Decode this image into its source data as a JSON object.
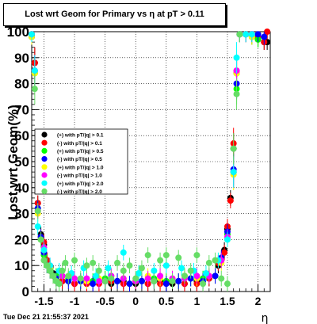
{
  "title": "Lost wrt Geom for Primary vs  η at pT > 0.11",
  "timestamp": "Tue Dec 21 21:55:37 2021",
  "chart_data": {
    "type": "scatter",
    "title": "Lost wrt Geom for Primary vs  η at pT > 0.11",
    "xlabel": "η",
    "ylabel": "Lost wrt Geom(%)",
    "xlim": [
      -1.7,
      2.2
    ],
    "ylim": [
      0,
      100
    ],
    "x_ticks": [
      "-1.5",
      "-1",
      "-0.5",
      "0",
      "0.5",
      "1",
      "1.5",
      "2"
    ],
    "y_ticks": [
      "0",
      "10",
      "20",
      "30",
      "40",
      "50",
      "60",
      "70",
      "80",
      "90",
      "100"
    ],
    "grid": true,
    "legend_position": "middle-left",
    "series": [
      {
        "name": "(+) with pT/|q| > 0.1",
        "color": "#000000",
        "x": [
          -1.7,
          -1.65,
          -1.6,
          -1.55,
          -1.5,
          -1.45,
          -1.4,
          -1.35,
          -1.3,
          -1.2,
          -1.0,
          -0.8,
          -0.6,
          -0.4,
          -0.2,
          0.0,
          0.2,
          0.4,
          0.6,
          0.8,
          1.0,
          1.2,
          1.35,
          1.45,
          1.5,
          1.55,
          1.6,
          1.65,
          1.7,
          1.8,
          1.9,
          2.0,
          2.1,
          2.15
        ],
        "y": [
          99,
          88,
          34,
          22,
          18,
          12,
          9,
          7,
          5,
          4,
          3,
          3,
          4,
          3,
          4,
          3,
          3,
          4,
          3,
          3,
          4,
          5,
          10,
          16,
          24,
          36,
          55,
          84,
          99,
          99,
          98,
          97,
          96,
          96
        ]
      },
      {
        "name": "(-) with pT/|q| > 0.1",
        "color": "#ff0000",
        "x": [
          -1.7,
          -1.65,
          -1.6,
          -1.55,
          -1.5,
          -1.45,
          -1.4,
          -1.35,
          -1.3,
          -1.2,
          -1.0,
          -0.8,
          -0.6,
          -0.4,
          -0.2,
          0.0,
          0.2,
          0.4,
          0.6,
          0.8,
          1.0,
          1.2,
          1.35,
          1.45,
          1.5,
          1.55,
          1.6,
          1.65,
          1.7,
          1.8,
          1.9,
          2.0,
          2.1,
          2.15
        ],
        "y": [
          99,
          88,
          34,
          21,
          19,
          12,
          9,
          6,
          5,
          4,
          3,
          3,
          3,
          4,
          3,
          4,
          3,
          3,
          4,
          3,
          3,
          5,
          11,
          15,
          25,
          35,
          57,
          85,
          99,
          99,
          99,
          98,
          96,
          100
        ]
      },
      {
        "name": "(+) with pT/|q| > 0.5",
        "color": "#00ff00",
        "x": [
          -1.7,
          -1.65,
          -1.6,
          -1.55,
          -1.5,
          -1.45,
          -1.4,
          -1.3,
          -1.1,
          -0.9,
          -0.7,
          -0.5,
          -0.3,
          -0.1,
          0.1,
          0.3,
          0.5,
          0.7,
          0.9,
          1.1,
          1.3,
          1.4,
          1.5,
          1.6,
          1.65,
          1.7,
          1.8,
          1.9,
          2.0
        ],
        "y": [
          98,
          84,
          32,
          20,
          14,
          10,
          8,
          6,
          5,
          4,
          4,
          5,
          4,
          3,
          4,
          5,
          4,
          4,
          5,
          5,
          6,
          12,
          22,
          46,
          78,
          99,
          99,
          98,
          97
        ]
      },
      {
        "name": "(-) with pT/|q| > 0.5",
        "color": "#0000ff",
        "x": [
          -1.7,
          -1.65,
          -1.6,
          -1.55,
          -1.5,
          -1.45,
          -1.4,
          -1.3,
          -1.1,
          -0.9,
          -0.7,
          -0.5,
          -0.3,
          -0.1,
          0.1,
          0.3,
          0.5,
          0.7,
          0.9,
          1.1,
          1.3,
          1.4,
          1.5,
          1.6,
          1.65,
          1.7,
          1.8,
          1.9,
          2.0,
          2.1
        ],
        "y": [
          98,
          85,
          32,
          21,
          15,
          10,
          8,
          5,
          4,
          4,
          3,
          4,
          4,
          3,
          4,
          4,
          3,
          4,
          5,
          4,
          6,
          13,
          23,
          47,
          80,
          99,
          99,
          99,
          99,
          98
        ]
      },
      {
        "name": "(+) with pT/|q| > 1.0",
        "color": "#ffff00",
        "x": [
          -1.7,
          -1.65,
          -1.6,
          -1.5,
          -1.4,
          -1.2,
          -1.0,
          -0.8,
          -0.6,
          -0.4,
          -0.2,
          0.0,
          0.2,
          0.4,
          0.6,
          0.8,
          1.0,
          1.2,
          1.4,
          1.5,
          1.6,
          1.65,
          1.7,
          1.8,
          1.9
        ],
        "y": [
          98,
          84,
          30,
          16,
          9,
          6,
          5,
          4,
          5,
          6,
          5,
          4,
          6,
          5,
          5,
          6,
          5,
          6,
          11,
          20,
          45,
          84,
          99,
          99,
          98
        ]
      },
      {
        "name": "(-) with pT/|q| > 1.0",
        "color": "#ff00ff",
        "x": [
          -1.7,
          -1.65,
          -1.6,
          -1.5,
          -1.4,
          -1.2,
          -1.0,
          -0.8,
          -0.6,
          -0.4,
          -0.2,
          0.0,
          0.2,
          0.4,
          0.6,
          0.8,
          1.0,
          1.2,
          1.4,
          1.5,
          1.6,
          1.65,
          1.7,
          1.8,
          1.9
        ],
        "y": [
          99,
          85,
          31,
          17,
          10,
          6,
          5,
          5,
          4,
          6,
          5,
          4,
          5,
          6,
          5,
          5,
          6,
          6,
          12,
          21,
          46,
          85,
          99,
          99,
          99
        ]
      },
      {
        "name": "(+) with pT/|q| > 2.0",
        "color": "#00ffff",
        "x": [
          -1.7,
          -1.65,
          -1.6,
          -1.5,
          -1.4,
          -1.25,
          -1.05,
          -0.85,
          -0.65,
          -0.45,
          -0.2,
          0.05,
          0.3,
          0.5,
          0.75,
          0.95,
          1.15,
          1.35,
          1.5,
          1.6,
          1.65,
          1.7,
          1.8,
          1.9
        ],
        "y": [
          99,
          85,
          25,
          16,
          10,
          8,
          7,
          9,
          6,
          9,
          15,
          7,
          8,
          10,
          9,
          8,
          7,
          12,
          20,
          46,
          90,
          99,
          99,
          99
        ]
      },
      {
        "name": "(-) with pT/|q| > 2.0",
        "color": "#66dd66",
        "x": [
          -1.65,
          -1.6,
          -1.55,
          -1.5,
          -1.45,
          -1.4,
          -1.35,
          -1.3,
          -1.25,
          -1.2,
          -1.15,
          -1.1,
          -1.0,
          -0.9,
          -0.8,
          -0.7,
          -0.6,
          -0.5,
          -0.4,
          -0.3,
          -0.2,
          -0.1,
          0.0,
          0.1,
          0.2,
          0.3,
          0.4,
          0.5,
          0.6,
          0.7,
          0.8,
          0.9,
          1.0,
          1.1,
          1.2,
          1.3,
          1.4,
          1.5,
          1.6,
          1.65,
          1.7
        ],
        "y": [
          78,
          31,
          20,
          12,
          10,
          8,
          6,
          4,
          3,
          8,
          11,
          6,
          12,
          5,
          10,
          11,
          8,
          4,
          5,
          11,
          8,
          10,
          5,
          9,
          14,
          4,
          12,
          14,
          4,
          13,
          6,
          8,
          14,
          3,
          11,
          12,
          5,
          3,
          55,
          76,
          99
        ]
      }
    ]
  }
}
